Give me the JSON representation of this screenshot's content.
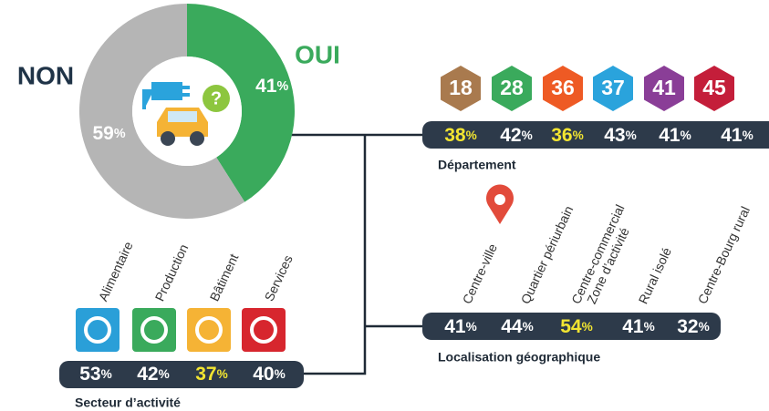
{
  "chart_data": {
    "type": "pie",
    "categories": [
      "OUI",
      "NON"
    ],
    "values": [
      41,
      59
    ],
    "value_labels": [
      "41%",
      "59%"
    ],
    "colors": [
      "#3aaa5c",
      "#b5b5b5"
    ]
  },
  "departement": {
    "title": "Département",
    "items": [
      {
        "code": "18",
        "value": "38%",
        "color": "#a97a4e",
        "highlight": "#f2e531"
      },
      {
        "code": "28",
        "value": "42%",
        "color": "#3aaa5c",
        "highlight": "#ffffff"
      },
      {
        "code": "36",
        "value": "36%",
        "color": "#ee5a24",
        "highlight": "#f2e531"
      },
      {
        "code": "37",
        "value": "43%",
        "color": "#2aa3dc",
        "highlight": "#ffffff"
      },
      {
        "code": "41",
        "value": "41%",
        "color": "#8a3e97",
        "highlight": "#ffffff"
      },
      {
        "code": "45",
        "value": "41%",
        "color": "#c41e3a",
        "highlight": "#ffffff"
      }
    ]
  },
  "localisation": {
    "title": "Localisation géographique",
    "items": [
      {
        "label": [
          "Centre-ville"
        ],
        "value": "41%",
        "highlight": "#ffffff"
      },
      {
        "label": [
          "Quartier périurbain"
        ],
        "value": "44%",
        "highlight": "#ffffff"
      },
      {
        "label": [
          "Centre-commercial",
          "Zone d’activité"
        ],
        "value": "54%",
        "highlight": "#f2e531"
      },
      {
        "label": [
          "Rural isolé"
        ],
        "value": "41%",
        "highlight": "#ffffff"
      },
      {
        "label": [
          "Centre-Bourg rural"
        ],
        "value": "32%",
        "highlight": "#ffffff"
      }
    ]
  },
  "secteur": {
    "title": "Secteur d’activité",
    "items": [
      {
        "label": "Alimentaire",
        "value": "53%",
        "color": "#2a9fd8",
        "highlight": "#ffffff"
      },
      {
        "label": "Production",
        "value": "42%",
        "color": "#3aaa5c",
        "highlight": "#ffffff"
      },
      {
        "label": "Bâtiment",
        "value": "37%",
        "color": "#f5b335",
        "highlight": "#f2e531"
      },
      {
        "label": "Services",
        "value": "40%",
        "color": "#d7262e",
        "highlight": "#ffffff"
      }
    ]
  }
}
